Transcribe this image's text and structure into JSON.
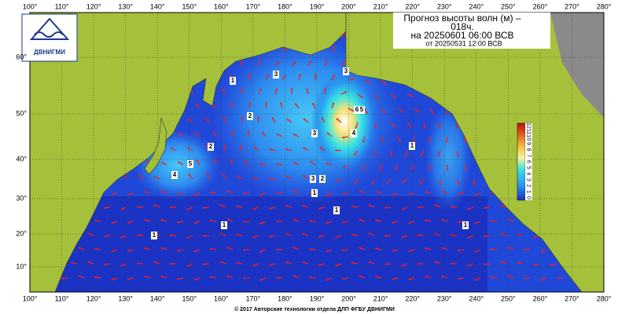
{
  "logo": {
    "text": "ДВНИГМИ"
  },
  "header": {
    "title": "Прогноз высоты волн (м) –",
    "lead": "018ч.",
    "valid": "на 20250601 06:00 ВСВ",
    "issued": "от 20250531 12:00 ВСВ"
  },
  "longitude_labels": [
    "100°",
    "110°",
    "120°",
    "130°",
    "140°",
    "150°",
    "160°",
    "170°",
    "180°",
    "190°",
    "200°",
    "210°",
    "220°",
    "230°",
    "240°",
    "250°",
    "260°",
    "270°",
    "280°"
  ],
  "latitude_labels": [
    "60°",
    "50°",
    "40°",
    "30°",
    "20°",
    "10°"
  ],
  "colorbar_labels": [
    "12",
    "11",
    "10",
    "9",
    "8",
    "7",
    "6",
    "5",
    "4",
    "3",
    "2",
    "1",
    "0"
  ],
  "contour_labels": [
    "1",
    "3",
    "2",
    "2",
    "4",
    "5",
    "3",
    "2",
    "1",
    "1",
    "1",
    "1",
    "1",
    "1",
    "6",
    "4",
    "3",
    "3",
    "5"
  ],
  "footer": {
    "text": "© 2017 Авторские технологии отдела ДЛП ФГБУ ДВНИГМИ"
  }
}
